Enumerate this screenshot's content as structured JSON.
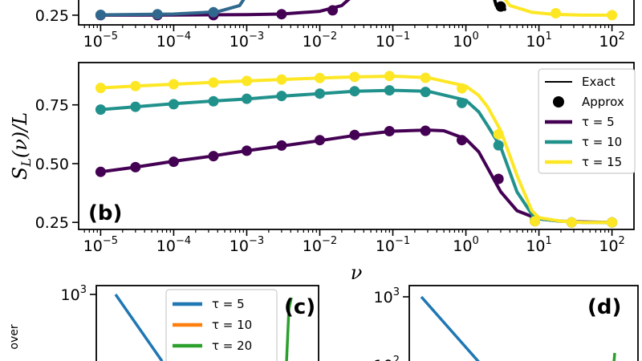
{
  "chart_data": [
    {
      "panel": "top (partial)",
      "type": "line",
      "xscale": "log",
      "xlim": [
        5e-06,
        200.0
      ],
      "ylim": [
        0.2,
        0.95
      ],
      "yticks": [
        0.25
      ],
      "ytick_labels": [
        "0.25"
      ],
      "xticks": [
        1e-05,
        0.0001,
        0.001,
        0.01,
        0.1,
        1.0,
        10.0,
        100.0
      ],
      "xtick_labels": [
        {
          "base": "10",
          "exp": "−5"
        },
        {
          "base": "10",
          "exp": "−4"
        },
        {
          "base": "10",
          "exp": "−3"
        },
        {
          "base": "10",
          "exp": "−2"
        },
        {
          "base": "10",
          "exp": "−1"
        },
        {
          "base": "10",
          "exp": "0"
        },
        {
          "base": "10",
          "exp": "1"
        },
        {
          "base": "10",
          "exp": "2"
        }
      ],
      "series": [
        {
          "color": "#440154",
          "exact_x": [
            1e-05,
            0.0001,
            0.001,
            0.003,
            0.01,
            0.02,
            0.04
          ],
          "exact_y": [
            0.25,
            0.251,
            0.253,
            0.256,
            0.27,
            0.3,
            0.4
          ],
          "approx_x": [
            1e-05,
            6e-05,
            0.00035,
            0.003,
            0.015
          ],
          "approx_y": [
            0.25,
            0.25,
            0.25,
            0.255,
            0.275
          ]
        },
        {
          "color": "#31688e",
          "exact_x": [
            1e-05,
            0.0001,
            0.0004,
            0.0008,
            0.0012
          ],
          "exact_y": [
            0.252,
            0.256,
            0.268,
            0.3,
            0.4
          ],
          "approx_x": [
            1e-05,
            6e-05,
            0.00035
          ],
          "approx_y": [
            0.252,
            0.255,
            0.265
          ]
        },
        {
          "color": "#fde725",
          "exact_x": [
            2.5,
            4,
            8,
            15,
            40,
            100
          ],
          "exact_y": [
            0.4,
            0.3,
            0.265,
            0.255,
            0.25,
            0.25
          ],
          "approx_x": [
            17,
            100
          ],
          "approx_y": [
            0.26,
            0.25
          ]
        },
        {
          "color": "#000000",
          "exact_x": [
            2.2,
            2.6,
            3.4
          ],
          "exact_y": [
            0.4,
            0.3,
            0.28
          ],
          "approx_x": [
            3.0
          ],
          "approx_y": [
            0.295
          ]
        }
      ]
    },
    {
      "panel": "(b)",
      "type": "line",
      "xscale": "log",
      "xlim": [
        5e-06,
        200.0
      ],
      "ylim": [
        0.22,
        0.93
      ],
      "xlabel": "ν",
      "ylabel": "S_L(ν)/L",
      "ylabel_parts": {
        "main": "S",
        "sub": "L",
        "rest": "(ν)/L"
      },
      "yticks": [
        0.25,
        0.5,
        0.75
      ],
      "ytick_labels": [
        "0.25",
        "0.50",
        "0.75"
      ],
      "xticks": [
        1e-05,
        0.0001,
        0.001,
        0.01,
        0.1,
        1.0,
        10.0,
        100.0
      ],
      "xtick_labels": [
        {
          "base": "10",
          "exp": "−5"
        },
        {
          "base": "10",
          "exp": "−4"
        },
        {
          "base": "10",
          "exp": "−3"
        },
        {
          "base": "10",
          "exp": "−2"
        },
        {
          "base": "10",
          "exp": "−1"
        },
        {
          "base": "10",
          "exp": "0"
        },
        {
          "base": "10",
          "exp": "1"
        },
        {
          "base": "10",
          "exp": "2"
        }
      ],
      "annotation": "(b)",
      "legend": {
        "placement": "right",
        "entries": [
          {
            "label": "Exact",
            "marker": "line",
            "color": "#000000"
          },
          {
            "label": "Approx",
            "marker": "dot",
            "color": "#000000"
          },
          {
            "label": "τ = 5",
            "marker": "line",
            "color": "#440154"
          },
          {
            "label": "τ = 10",
            "marker": "line",
            "color": "#21918c"
          },
          {
            "label": "τ = 15",
            "marker": "line",
            "color": "#fde725"
          }
        ]
      },
      "series": [
        {
          "name": "τ = 5",
          "color": "#440154",
          "exact_x": [
            1e-05,
            3e-05,
            0.0001,
            0.0003,
            0.001,
            0.003,
            0.01,
            0.03,
            0.1,
            0.3,
            0.5,
            1,
            1.5,
            2,
            3,
            5,
            8,
            10,
            20,
            40,
            100
          ],
          "exact_y": [
            0.465,
            0.485,
            0.51,
            0.53,
            0.555,
            0.575,
            0.598,
            0.62,
            0.638,
            0.643,
            0.64,
            0.605,
            0.55,
            0.48,
            0.38,
            0.3,
            0.275,
            0.265,
            0.255,
            0.252,
            0.25
          ],
          "approx_x": [
            1e-05,
            3e-05,
            0.0001,
            0.00035,
            0.001,
            0.003,
            0.01,
            0.03,
            0.09,
            0.28,
            0.88,
            2.8,
            8.8,
            28,
            100
          ],
          "approx_y": [
            0.465,
            0.485,
            0.508,
            0.532,
            0.555,
            0.577,
            0.6,
            0.622,
            0.638,
            0.64,
            0.6,
            0.435,
            0.255,
            0.25,
            0.25
          ]
        },
        {
          "name": "τ = 10",
          "color": "#21918c",
          "exact_x": [
            1e-05,
            3e-05,
            0.0001,
            0.0003,
            0.001,
            0.003,
            0.01,
            0.03,
            0.1,
            0.3,
            1,
            1.5,
            2,
            3,
            5,
            8,
            10,
            20,
            40,
            100
          ],
          "exact_y": [
            0.73,
            0.742,
            0.755,
            0.765,
            0.775,
            0.787,
            0.798,
            0.808,
            0.812,
            0.808,
            0.77,
            0.72,
            0.66,
            0.57,
            0.38,
            0.285,
            0.265,
            0.255,
            0.25,
            0.25
          ],
          "approx_x": [
            1e-05,
            3e-05,
            0.0001,
            0.00035,
            0.001,
            0.003,
            0.01,
            0.03,
            0.09,
            0.28,
            0.88,
            2.8,
            8.8,
            28,
            100
          ],
          "approx_y": [
            0.73,
            0.742,
            0.753,
            0.765,
            0.776,
            0.788,
            0.798,
            0.808,
            0.812,
            0.805,
            0.758,
            0.578,
            0.26,
            0.25,
            0.25
          ]
        },
        {
          "name": "τ = 15",
          "color": "#fde725",
          "exact_x": [
            1e-05,
            3e-05,
            0.0001,
            0.0003,
            0.001,
            0.003,
            0.01,
            0.03,
            0.1,
            0.3,
            1,
            1.5,
            2,
            3,
            5,
            8,
            10,
            20,
            40,
            100
          ],
          "exact_y": [
            0.822,
            0.83,
            0.838,
            0.845,
            0.852,
            0.858,
            0.864,
            0.869,
            0.872,
            0.866,
            0.83,
            0.79,
            0.74,
            0.64,
            0.45,
            0.3,
            0.27,
            0.255,
            0.25,
            0.25
          ],
          "approx_x": [
            1e-05,
            3e-05,
            0.0001,
            0.00035,
            0.001,
            0.003,
            0.01,
            0.03,
            0.09,
            0.28,
            0.88,
            2.8,
            8.8,
            28,
            100
          ],
          "approx_y": [
            0.822,
            0.83,
            0.838,
            0.845,
            0.852,
            0.858,
            0.864,
            0.869,
            0.873,
            0.865,
            0.82,
            0.625,
            0.255,
            0.25,
            0.25
          ]
        }
      ]
    },
    {
      "panel": "(c) (partial)",
      "type": "line",
      "yscale": "log",
      "ylabel_partial": "over",
      "ytick_labels": [
        {
          "base": "10",
          "exp": "3"
        }
      ],
      "annotation": "(c)",
      "legend": {
        "placement": "top-center",
        "entries": [
          {
            "label": "τ = 5",
            "color": "#1f77b4"
          },
          {
            "label": "τ = 10",
            "color": "#ff7f0e"
          },
          {
            "label": "τ = 20",
            "color": "#2ca02c"
          }
        ]
      },
      "series": [
        {
          "name": "τ = 5",
          "color": "#1f77b4",
          "points": [
            [
              0.0,
              1000
            ],
            [
              0.5,
              180
            ]
          ]
        },
        {
          "name": "τ = 20",
          "color": "#2ca02c",
          "points": [
            [
              1.0,
              800
            ],
            [
              1.03,
              1000
            ]
          ]
        }
      ]
    },
    {
      "panel": "(d) (partial)",
      "type": "line",
      "yscale": "log",
      "ytick_labels": [
        {
          "base": "10",
          "exp": "3"
        },
        {
          "base": "10",
          "exp": "2"
        }
      ],
      "annotation": "(d)",
      "series": [
        {
          "color": "#1f77b4",
          "points": [
            [
              0.0,
              1000
            ],
            [
              0.55,
              100
            ]
          ]
        },
        {
          "color": "#2ca02c",
          "points": [
            [
              1.0,
              90
            ],
            [
              1.0,
              120
            ]
          ]
        }
      ]
    }
  ]
}
